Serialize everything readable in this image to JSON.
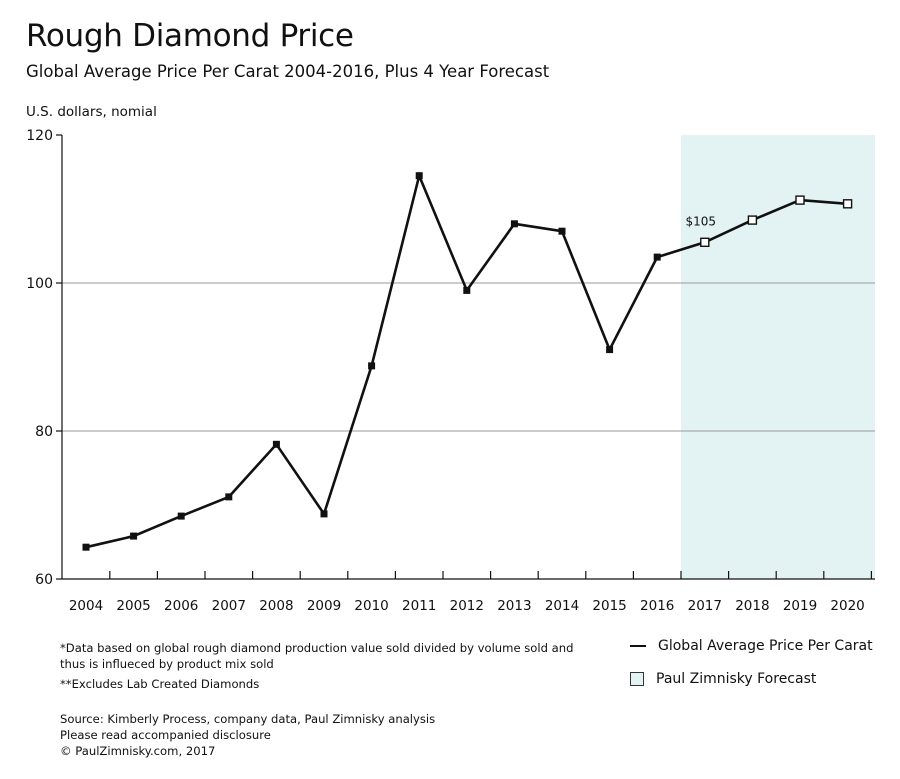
{
  "chart_data": {
    "type": "line",
    "title": "Rough Diamond Price",
    "subtitle": "Global Average Price Per Carat 2004-2016, Plus 4 Year Forecast",
    "ylabel": "U.S. dollars, nomial",
    "xlabel": "",
    "ylim": [
      60,
      120
    ],
    "yticks": [
      60,
      80,
      100,
      120
    ],
    "grid": "horizontal at 80 and 100",
    "categories": [
      "2004",
      "2005",
      "2006",
      "2007",
      "2008",
      "2009",
      "2010",
      "2011",
      "2012",
      "2013",
      "2014",
      "2015",
      "2016",
      "2017",
      "2018",
      "2019",
      "2020"
    ],
    "series": [
      {
        "name": "Global Average Price Per Carat",
        "values": [
          64.3,
          65.8,
          68.5,
          71.1,
          78.2,
          68.8,
          88.8,
          114.5,
          99.0,
          108.0,
          107.0,
          91.0,
          103.5,
          105.5,
          108.5,
          111.2,
          110.7
        ],
        "forecast_from_index": 13,
        "marker_actual": "filled-square",
        "marker_forecast": "open-square"
      }
    ],
    "forecast_region": {
      "label": "Paul Zimnisky Forecast",
      "start_category": "2017",
      "end_category": "2020",
      "color": "#e3f3f4"
    },
    "annotations": [
      {
        "category": "2017",
        "text": "$105"
      }
    ],
    "legend": {
      "placement": "bottom-right",
      "entries": [
        "Global Average Price Per Carat",
        "Paul Zimnisky Forecast"
      ]
    }
  },
  "footnotes": {
    "line1": "*Data based on global rough diamond production value sold divided by volume sold and",
    "line2": "thus is influeced by product mix sold",
    "line3": "**Excludes Lab Created Diamonds"
  },
  "source": {
    "line1": "Source: Kimberly Process, company data, Paul Zimnisky analysis",
    "line2": "Please read accompanied disclosure",
    "line3": "© PaulZimnisky.com, 2017"
  },
  "colors": {
    "line": "#111111",
    "forecast_fill": "#e3f3f4",
    "grid": "#999999"
  }
}
